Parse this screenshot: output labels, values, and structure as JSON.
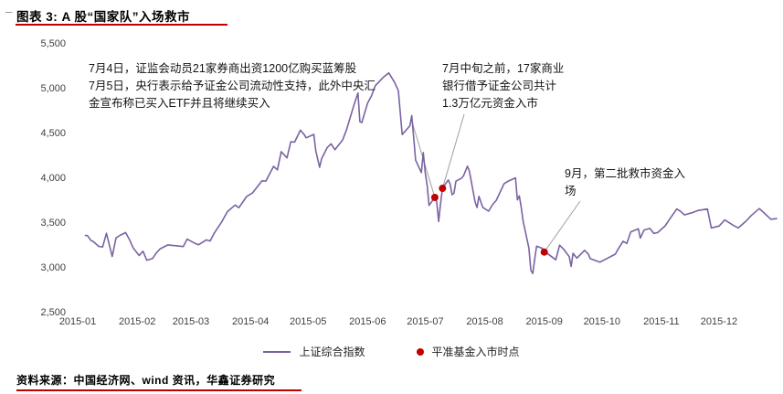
{
  "header": {
    "margin_mark": "_",
    "title": "图表 3: A 股“国家队”入场救市"
  },
  "footer": {
    "source": "资料来源：中国经济网、wind 资讯，华鑫证券研究"
  },
  "colors": {
    "accent_red": "#C00000",
    "line_purple": "#7A62A3",
    "leader_gray": "#A0A0A0"
  },
  "chart_data": {
    "type": "line",
    "xlabel": "",
    "ylabel": "",
    "ylim": [
      2500,
      5500
    ],
    "grid": false,
    "legend_position": "bottom",
    "yticks": [
      {
        "v": 5500,
        "label": "5,500"
      },
      {
        "v": 5000,
        "label": "5,000"
      },
      {
        "v": 4500,
        "label": "4,500"
      },
      {
        "v": 4000,
        "label": "4,000"
      },
      {
        "v": 3500,
        "label": "3,500"
      },
      {
        "v": 3000,
        "label": "3,000"
      },
      {
        "v": 2500,
        "label": "2,500"
      }
    ],
    "xticks": [
      {
        "day": 1,
        "label": "2015-01"
      },
      {
        "day": 32,
        "label": "2015-02"
      },
      {
        "day": 60,
        "label": "2015-03"
      },
      {
        "day": 91,
        "label": "2015-04"
      },
      {
        "day": 121,
        "label": "2015-05"
      },
      {
        "day": 152,
        "label": "2015-06"
      },
      {
        "day": 182,
        "label": "2015-07"
      },
      {
        "day": 213,
        "label": "2015-08"
      },
      {
        "day": 244,
        "label": "2015-09"
      },
      {
        "day": 274,
        "label": "2015-10"
      },
      {
        "day": 305,
        "label": "2015-11"
      },
      {
        "day": 335,
        "label": "2015-12"
      }
    ],
    "series": [
      {
        "name": "上证综合指数",
        "color": "#7A62A3",
        "points": [
          [
            5,
            3350
          ],
          [
            6,
            3352
          ],
          [
            8,
            3294
          ],
          [
            9,
            3286
          ],
          [
            12,
            3230
          ],
          [
            14,
            3222
          ],
          [
            16,
            3376
          ],
          [
            19,
            3116
          ],
          [
            21,
            3323
          ],
          [
            23,
            3352
          ],
          [
            26,
            3384
          ],
          [
            28,
            3305
          ],
          [
            30,
            3210
          ],
          [
            33,
            3128
          ],
          [
            35,
            3175
          ],
          [
            37,
            3075
          ],
          [
            40,
            3095
          ],
          [
            42,
            3157
          ],
          [
            44,
            3203
          ],
          [
            48,
            3246
          ],
          [
            56,
            3228
          ],
          [
            58,
            3310
          ],
          [
            62,
            3264
          ],
          [
            64,
            3248
          ],
          [
            68,
            3302
          ],
          [
            70,
            3290
          ],
          [
            72,
            3372
          ],
          [
            76,
            3502
          ],
          [
            79,
            3617
          ],
          [
            83,
            3691
          ],
          [
            85,
            3661
          ],
          [
            89,
            3786
          ],
          [
            92,
            3826
          ],
          [
            97,
            3961
          ],
          [
            99,
            3958
          ],
          [
            103,
            4122
          ],
          [
            105,
            4084
          ],
          [
            107,
            4287
          ],
          [
            110,
            4217
          ],
          [
            112,
            4398
          ],
          [
            114,
            4394
          ],
          [
            117,
            4527
          ],
          [
            119,
            4477
          ],
          [
            120,
            4441
          ],
          [
            124,
            4480
          ],
          [
            125,
            4298
          ],
          [
            127,
            4112
          ],
          [
            128,
            4205
          ],
          [
            131,
            4333
          ],
          [
            133,
            4375
          ],
          [
            135,
            4308
          ],
          [
            139,
            4417
          ],
          [
            141,
            4529
          ],
          [
            145,
            4814
          ],
          [
            147,
            4941
          ],
          [
            148,
            4620
          ],
          [
            149,
            4611
          ],
          [
            152,
            4828
          ],
          [
            154,
            4909
          ],
          [
            156,
            5023
          ],
          [
            160,
            5113
          ],
          [
            163,
            5166
          ],
          [
            166,
            5062
          ],
          [
            168,
            4967
          ],
          [
            170,
            4478
          ],
          [
            174,
            4576
          ],
          [
            175,
            4690
          ],
          [
            177,
            4192
          ],
          [
            180,
            4053
          ],
          [
            181,
            4277
          ],
          [
            182,
            4054
          ],
          [
            183,
            3912
          ],
          [
            184,
            3687
          ],
          [
            187,
            3776
          ],
          [
            188,
            3727
          ],
          [
            189,
            3507
          ],
          [
            190,
            3709
          ],
          [
            191,
            3877
          ],
          [
            194,
            3970
          ],
          [
            195,
            3924
          ],
          [
            196,
            3806
          ],
          [
            197,
            3823
          ],
          [
            198,
            3957
          ],
          [
            201,
            3992
          ],
          [
            202,
            4018
          ],
          [
            204,
            4124
          ],
          [
            205,
            4071
          ],
          [
            208,
            3726
          ],
          [
            209,
            3663
          ],
          [
            210,
            3789
          ],
          [
            212,
            3664
          ],
          [
            215,
            3622
          ],
          [
            217,
            3694
          ],
          [
            219,
            3744
          ],
          [
            223,
            3928
          ],
          [
            225,
            3955
          ],
          [
            229,
            3994
          ],
          [
            230,
            3748
          ],
          [
            231,
            3794
          ],
          [
            232,
            3664
          ],
          [
            233,
            3508
          ],
          [
            236,
            3210
          ],
          [
            237,
            2965
          ],
          [
            238,
            2927
          ],
          [
            239,
            3084
          ],
          [
            240,
            3232
          ],
          [
            243,
            3206
          ],
          [
            244,
            3166
          ],
          [
            245,
            3160
          ],
          [
            250,
            3080
          ],
          [
            252,
            3243
          ],
          [
            254,
            3200
          ],
          [
            257,
            3115
          ],
          [
            258,
            3005
          ],
          [
            259,
            3152
          ],
          [
            261,
            3098
          ],
          [
            265,
            3186
          ],
          [
            267,
            3142
          ],
          [
            268,
            3092
          ],
          [
            273,
            3053
          ],
          [
            281,
            3143
          ],
          [
            282,
            3183
          ],
          [
            285,
            3287
          ],
          [
            287,
            3262
          ],
          [
            289,
            3391
          ],
          [
            293,
            3425
          ],
          [
            294,
            3321
          ],
          [
            296,
            3412
          ],
          [
            299,
            3430
          ],
          [
            301,
            3375
          ],
          [
            303,
            3383
          ],
          [
            307,
            3459
          ],
          [
            309,
            3523
          ],
          [
            313,
            3647
          ],
          [
            315,
            3620
          ],
          [
            317,
            3581
          ],
          [
            321,
            3605
          ],
          [
            324,
            3630
          ],
          [
            329,
            3647
          ],
          [
            331,
            3436
          ],
          [
            335,
            3456
          ],
          [
            338,
            3525
          ],
          [
            342,
            3470
          ],
          [
            345,
            3435
          ],
          [
            349,
            3510
          ],
          [
            352,
            3579
          ],
          [
            356,
            3651
          ],
          [
            358,
            3612
          ],
          [
            362,
            3533
          ],
          [
            365,
            3539
          ]
        ]
      }
    ],
    "markers": {
      "name": "平准基金入市时点",
      "color": "#C00000",
      "points": [
        [
          187,
          3776
        ],
        [
          191,
          3877
        ],
        [
          244,
          3166
        ]
      ]
    },
    "leaders": [
      {
        "from": [
          450,
          100
        ],
        "to": 0
      },
      {
        "from": [
          508,
          95
        ],
        "to": 1
      },
      {
        "from": [
          635,
          190
        ],
        "to": 2
      }
    ],
    "annotations": [
      {
        "lines": [
          "7月4日，证监会动员21家券商出资1200亿购买蓝筹股",
          "7月5日，央行表示给予证金公司流动性支持，此外中央汇",
          "金宣布称已买入ETF并且将继续买入"
        ]
      },
      {
        "lines": [
          "7月中旬之前，17家商业",
          "银行借予证金公司共计",
          "1.3万亿元资金入市"
        ]
      },
      {
        "lines": [
          "9月，第二批救市资金入",
          "场"
        ]
      }
    ]
  }
}
